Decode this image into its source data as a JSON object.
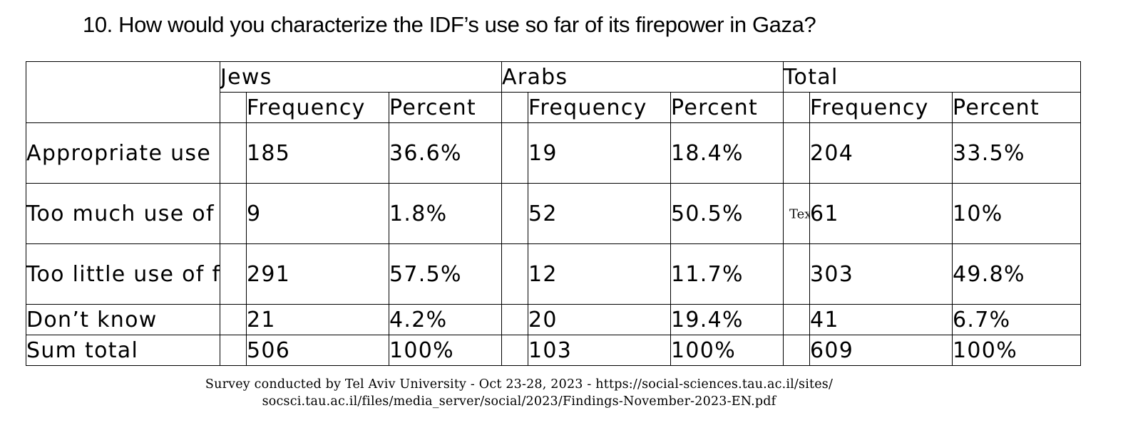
{
  "question": "10.  How would you characterize the IDF’s use so far of its firepower in Gaza?",
  "chart_data": {
    "type": "table",
    "title": "10.  How would you characterize the IDF’s use so far of its firepower in Gaza?",
    "groups": [
      "Jews",
      "Arabs",
      "Total"
    ],
    "columns": [
      "Frequency",
      "Percent"
    ],
    "rows": [
      {
        "label": "Appropriate use",
        "jews": {
          "frequency": "185",
          "percent": "36.6%"
        },
        "arabs": {
          "frequency": "19",
          "percent": "18.4%"
        },
        "total": {
          "frequency": "204",
          "percent": "33.5%"
        }
      },
      {
        "label": "Too much use of firepower",
        "jews": {
          "frequency": "9",
          "percent": "1.8%"
        },
        "arabs": {
          "frequency": "52",
          "percent": "50.5%"
        },
        "total": {
          "frequency": "61",
          "percent": "10%"
        }
      },
      {
        "label": "Too little use of firepower",
        "jews": {
          "frequency": "291",
          "percent": "57.5%"
        },
        "arabs": {
          "frequency": "12",
          "percent": "11.7%"
        },
        "total": {
          "frequency": "303",
          "percent": "49.8%"
        }
      },
      {
        "label": "Don’t know",
        "jews": {
          "frequency": "21",
          "percent": "4.2%"
        },
        "arabs": {
          "frequency": "20",
          "percent": "19.4%"
        },
        "total": {
          "frequency": "41",
          "percent": "6.7%"
        }
      },
      {
        "label": "Sum total",
        "jews": {
          "frequency": "506",
          "percent": "100%"
        },
        "arabs": {
          "frequency": "103",
          "percent": "100%"
        },
        "total": {
          "frequency": "609",
          "percent": "100%"
        }
      }
    ]
  },
  "stray_text": "Text",
  "source": {
    "line1": "Survey conducted by Tel Aviv University -  Oct 23-28, 2023 - https://social-sciences.tau.ac.il/sites/",
    "line2": "socsci.tau.ac.il/files/media_server/social/2023/Findings-November-2023-EN.pdf"
  }
}
